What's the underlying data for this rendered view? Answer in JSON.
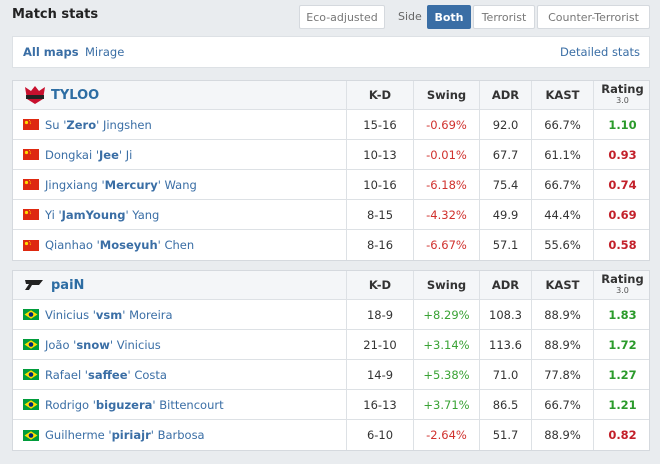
{
  "header": {
    "title": "Match stats",
    "eco": "Eco-adjusted",
    "side": "Side",
    "options": [
      "Both",
      "Terrorist",
      "Counter-Terrorist"
    ]
  },
  "subnav": {
    "maps": [
      "All maps",
      "Mirage"
    ],
    "detailed": "Detailed stats"
  },
  "teams": [
    {
      "name": "TYLOO",
      "columns": [
        "K-D",
        "Swing",
        "ADR",
        "KAST"
      ],
      "rating_label": "Rating",
      "rating_version": "3.0",
      "players": [
        {
          "first": "Su '",
          "nick": "Zero",
          "last": "' Jingshen",
          "kd": "15-16",
          "swing": "-0.69%",
          "adr": "92.0",
          "kast": "66.7%",
          "rating": "1.10"
        },
        {
          "first": "Dongkai '",
          "nick": "Jee",
          "last": "' Ji",
          "kd": "10-13",
          "swing": "-0.01%",
          "adr": "67.7",
          "kast": "61.1%",
          "rating": "0.93"
        },
        {
          "first": "Jingxiang '",
          "nick": "Mercury",
          "last": "' Wang",
          "kd": "10-16",
          "swing": "-6.18%",
          "adr": "75.4",
          "kast": "66.7%",
          "rating": "0.74"
        },
        {
          "first": "Yi '",
          "nick": "JamYoung",
          "last": "' Yang",
          "kd": "8-15",
          "swing": "-4.32%",
          "adr": "49.9",
          "kast": "44.4%",
          "rating": "0.69"
        },
        {
          "first": "Qianhao '",
          "nick": "Moseyuh",
          "last": "' Chen",
          "kd": "8-16",
          "swing": "-6.67%",
          "adr": "57.1",
          "kast": "55.6%",
          "rating": "0.58"
        }
      ]
    },
    {
      "name": "paiN",
      "columns": [
        "K-D",
        "Swing",
        "ADR",
        "KAST"
      ],
      "rating_label": "Rating",
      "rating_version": "3.0",
      "players": [
        {
          "first": "Vinicius '",
          "nick": "vsm",
          "last": "' Moreira",
          "kd": "18-9",
          "swing": "+8.29%",
          "adr": "108.3",
          "kast": "88.9%",
          "rating": "1.83"
        },
        {
          "first": "João '",
          "nick": "snow",
          "last": "' Vinicius",
          "kd": "21-10",
          "swing": "+3.14%",
          "adr": "113.6",
          "kast": "88.9%",
          "rating": "1.72"
        },
        {
          "first": "Rafael '",
          "nick": "saffee",
          "last": "' Costa",
          "kd": "14-9",
          "swing": "+5.38%",
          "adr": "71.0",
          "kast": "77.8%",
          "rating": "1.27"
        },
        {
          "first": "Rodrigo '",
          "nick": "biguzera",
          "last": "' Bittencourt",
          "kd": "16-13",
          "swing": "+3.71%",
          "adr": "86.5",
          "kast": "66.7%",
          "rating": "1.21"
        },
        {
          "first": "Guilherme '",
          "nick": "piriajr",
          "last": "' Barbosa",
          "kd": "6-10",
          "swing": "-2.64%",
          "adr": "51.7",
          "kast": "88.9%",
          "rating": "0.82"
        }
      ]
    }
  ]
}
